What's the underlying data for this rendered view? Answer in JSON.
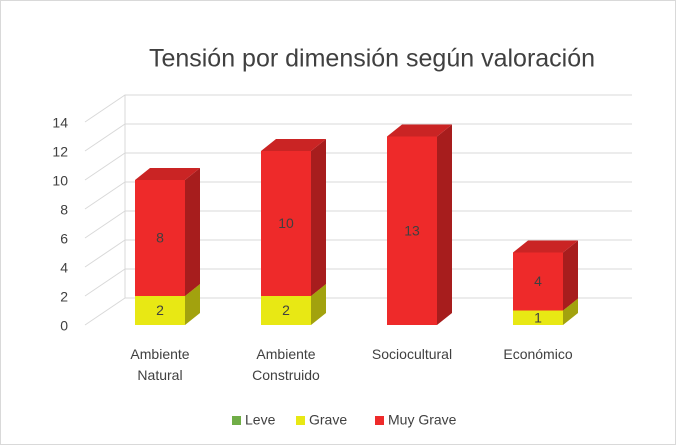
{
  "chart_data": {
    "type": "bar3d_stacked",
    "title": "Tensión por dimensión según valoración",
    "categories": [
      "Ambiente Natural",
      "Ambiente Construido",
      "Sociocultural",
      "Económico"
    ],
    "series": [
      {
        "name": "Leve",
        "color": "#70ad47",
        "values": [
          0,
          0,
          0,
          0
        ]
      },
      {
        "name": "Grave",
        "color": "#e8e814",
        "values": [
          2,
          2,
          0,
          1
        ]
      },
      {
        "name": "Muy Grave",
        "color": "#ee2a2a",
        "values": [
          8,
          10,
          13,
          4
        ]
      }
    ],
    "ylim": [
      0,
      14
    ],
    "yticks": [
      0,
      2,
      4,
      6,
      8,
      10,
      12,
      14
    ],
    "grid": true,
    "legend": "bottom"
  }
}
